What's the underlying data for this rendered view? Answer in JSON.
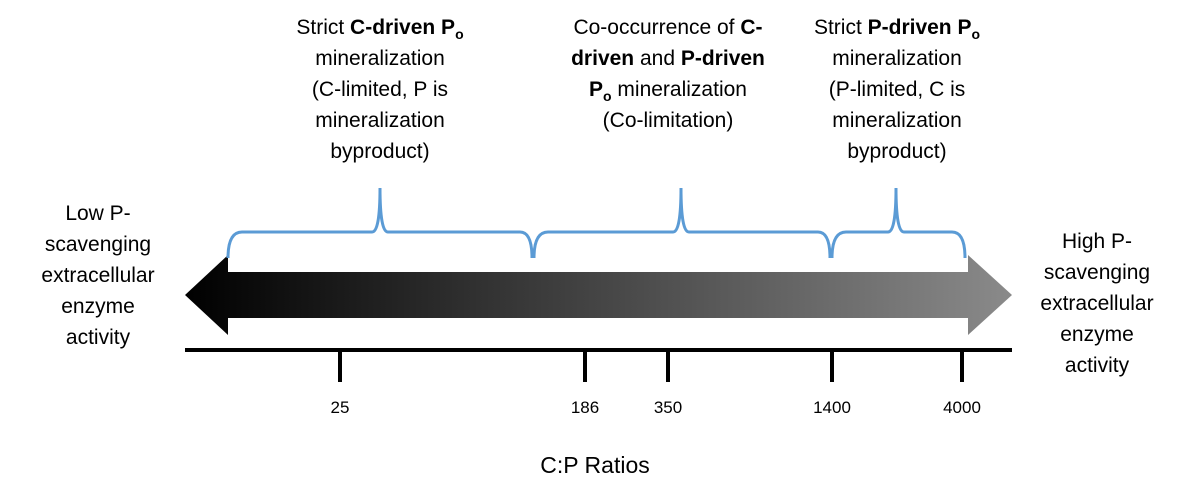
{
  "regions": [
    {
      "lines": [
        [
          {
            "text": "Strict "
          },
          {
            "text": "C-driven P",
            "bold": true
          },
          {
            "text": "o",
            "bold": true,
            "sub": true
          }
        ],
        [
          {
            "text": "mineralization"
          }
        ],
        [
          {
            "text": "(C-limited, P is"
          }
        ],
        [
          {
            "text": "mineralization"
          }
        ],
        [
          {
            "text": "byproduct)"
          }
        ]
      ]
    },
    {
      "lines": [
        [
          {
            "text": "Co-occurrence of "
          },
          {
            "text": "C-",
            "bold": true
          }
        ],
        [
          {
            "text": "driven",
            "bold": true
          },
          {
            "text": " and "
          },
          {
            "text": "P-driven",
            "bold": true
          }
        ],
        [
          {
            "text": "P",
            "bold": true
          },
          {
            "text": "o",
            "bold": true,
            "sub": true
          },
          {
            "text": " mineralization"
          }
        ],
        [
          {
            "text": "(Co-limitation)"
          }
        ]
      ]
    },
    {
      "lines": [
        [
          {
            "text": "Strict "
          },
          {
            "text": "P-driven P",
            "bold": true
          },
          {
            "text": "o",
            "bold": true,
            "sub": true
          }
        ],
        [
          {
            "text": "mineralization"
          }
        ],
        [
          {
            "text": "(P-limited, C is"
          }
        ],
        [
          {
            "text": "mineralization"
          }
        ],
        [
          {
            "text": "byproduct)"
          }
        ]
      ]
    }
  ],
  "left_label": {
    "lines": [
      [
        {
          "text": "Low P-"
        }
      ],
      [
        {
          "text": "scavenging"
        }
      ],
      [
        {
          "text": "extracellular"
        }
      ],
      [
        {
          "text": "enzyme"
        }
      ],
      [
        {
          "text": "activity"
        }
      ]
    ]
  },
  "right_label": {
    "lines": [
      [
        {
          "text": "High P-"
        }
      ],
      [
        {
          "text": "scavenging"
        }
      ],
      [
        {
          "text": "extracellular"
        }
      ],
      [
        {
          "text": "enzyme"
        }
      ],
      [
        {
          "text": "activity"
        }
      ]
    ]
  },
  "ticks": [
    "25",
    "186",
    "350",
    "1400",
    "4000"
  ],
  "axis_title": "C:P Ratios"
}
